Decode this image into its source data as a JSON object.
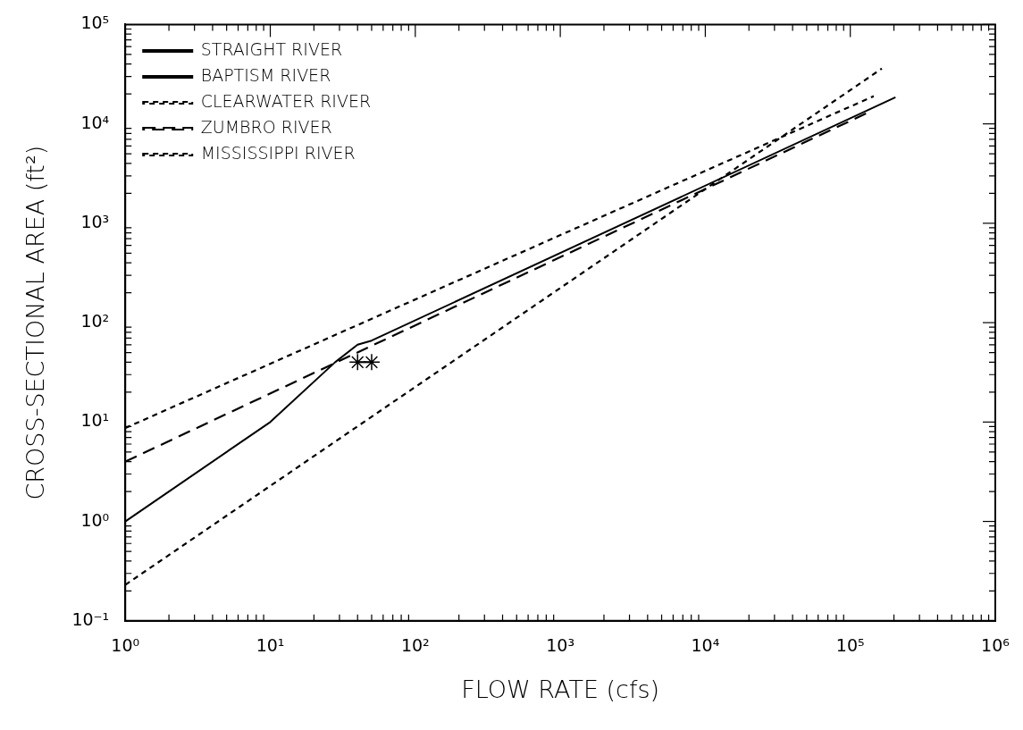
{
  "chart_data": {
    "type": "line",
    "xlabel": "FLOW RATE (cfs)",
    "ylabel": "CROSS-SECTIONAL AREA (ft²)",
    "log": "xy",
    "xlim": [
      1,
      1000000
    ],
    "ylim": [
      0.1,
      100000
    ],
    "xticks": [
      {
        "value": 1,
        "label": "10⁰"
      },
      {
        "value": 10,
        "label": "10¹"
      },
      {
        "value": 100,
        "label": "10²"
      },
      {
        "value": 1000,
        "label": "10³"
      },
      {
        "value": 10000,
        "label": "10⁴"
      },
      {
        "value": 100000,
        "label": "10⁵"
      },
      {
        "value": 1000000,
        "label": "10⁶"
      }
    ],
    "yticks": [
      {
        "value": 0.1,
        "label": "10⁻¹"
      },
      {
        "value": 1,
        "label": "10⁰"
      },
      {
        "value": 10,
        "label": "10¹"
      },
      {
        "value": 100,
        "label": "10²"
      },
      {
        "value": 1000,
        "label": "10³"
      },
      {
        "value": 10000,
        "label": "10⁴"
      },
      {
        "value": 100000,
        "label": "10⁵"
      }
    ],
    "grid": false,
    "legend": "top left",
    "series": [
      {
        "name": "STRAIGHT RIVER",
        "color": "#000000",
        "x": [
          40,
          50
        ],
        "values": [
          40,
          40
        ],
        "marker": "cross",
        "line_style": "solid"
      },
      {
        "name": "BAPTISM RIVER",
        "color": "#000000",
        "x": [
          1,
          10,
          28,
          40,
          50,
          205000
        ],
        "values": [
          1,
          10,
          40,
          60,
          66,
          18500
        ],
        "marker": "none",
        "line_style": "solid"
      },
      {
        "name": "CLEARWATER RIVER",
        "color": "#000000",
        "x": [
          1,
          145000
        ],
        "values": [
          8.7,
          19000
        ],
        "marker": "none",
        "line_style": "dotted"
      },
      {
        "name": "ZUMBRO RIVER",
        "color": "#000000",
        "x": [
          1,
          140000
        ],
        "values": [
          4.0,
          13500
        ],
        "marker": "none",
        "line_style": "dashed"
      },
      {
        "name": "MISSISSIPPI RIVER",
        "color": "#000000",
        "x": [
          1,
          165000
        ],
        "values": [
          0.23,
          36000
        ],
        "marker": "none",
        "line_style": "dotted"
      }
    ]
  }
}
